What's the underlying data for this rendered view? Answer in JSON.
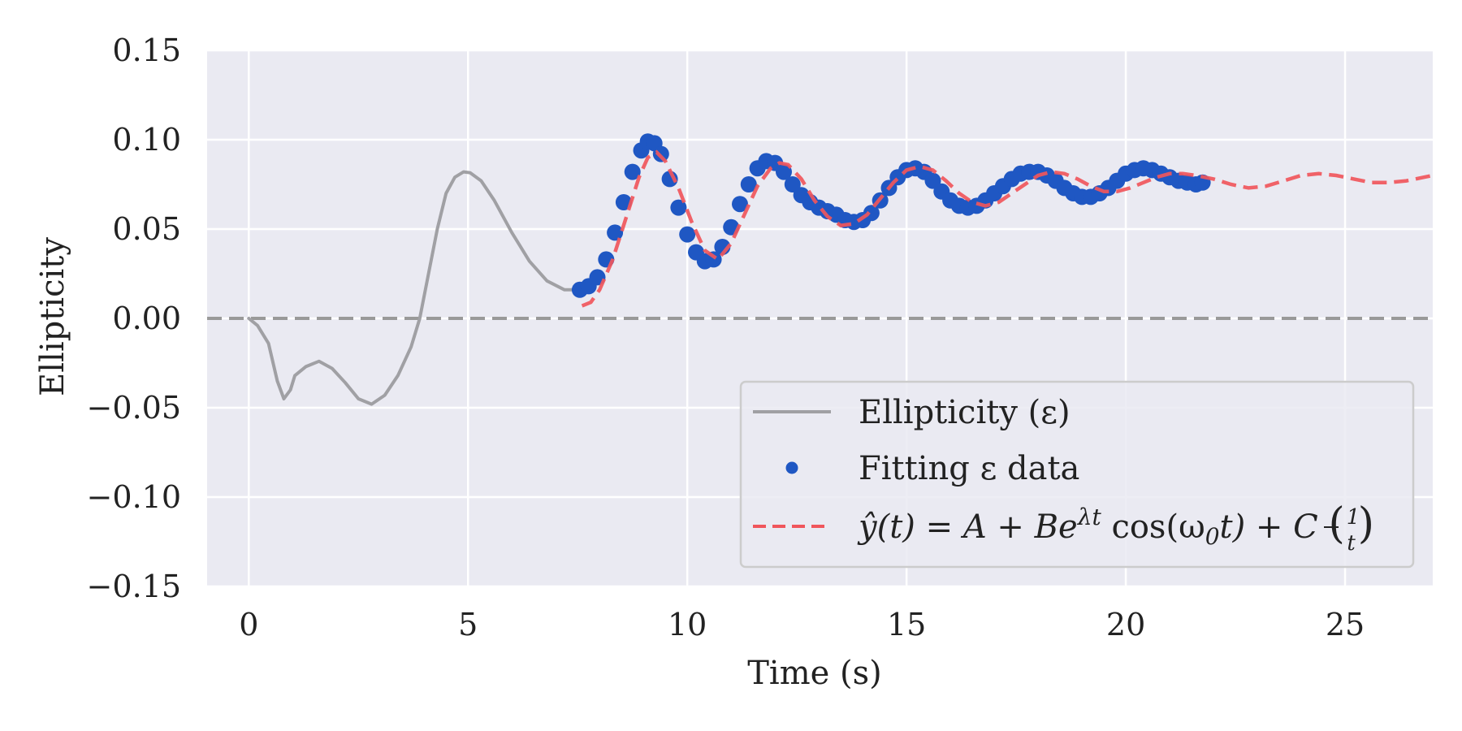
{
  "chart_data": {
    "type": "line",
    "title": "",
    "xlabel": "Time (s)",
    "ylabel": "Ellipticity",
    "xlim": [
      -0.95,
      27
    ],
    "ylim": [
      -0.15,
      0.15
    ],
    "xticks": [
      0,
      5,
      10,
      15,
      20,
      25
    ],
    "xtick_labels": [
      "0",
      "5",
      "10",
      "15",
      "20",
      "25"
    ],
    "yticks": [
      -0.15,
      -0.1,
      -0.05,
      0.0,
      0.05,
      0.1,
      0.15
    ],
    "ytick_labels": [
      "−0.15",
      "−0.10",
      "−0.05",
      "0.00",
      "0.05",
      "0.10",
      "0.15"
    ],
    "grid": true,
    "legend_position": "lower-right",
    "reference_line": {
      "y": 0.0,
      "color": "#999999",
      "style": "dashed"
    },
    "series": [
      {
        "name": "Ellipticity (ε)",
        "kind": "line",
        "color": "#a0a0a4",
        "x": [
          0,
          0.2,
          0.45,
          0.65,
          0.8,
          0.95,
          1.05,
          1.3,
          1.6,
          1.9,
          2.2,
          2.5,
          2.8,
          3.1,
          3.4,
          3.7,
          3.9,
          4.1,
          4.3,
          4.5,
          4.7,
          4.9,
          5.05,
          5.3,
          5.6,
          6.0,
          6.4,
          6.8,
          7.2,
          7.55
        ],
        "y": [
          0.0,
          -0.004,
          -0.014,
          -0.035,
          -0.045,
          -0.04,
          -0.032,
          -0.027,
          -0.024,
          -0.028,
          -0.036,
          -0.045,
          -0.048,
          -0.043,
          -0.032,
          -0.016,
          0.0,
          0.025,
          0.05,
          0.07,
          0.079,
          0.082,
          0.0815,
          0.077,
          0.066,
          0.048,
          0.032,
          0.021,
          0.016,
          0.016
        ]
      },
      {
        "name": "Fitting ε data",
        "kind": "scatter",
        "color": "#1f57c3",
        "x": [
          7.55,
          7.75,
          7.95,
          8.15,
          8.35,
          8.55,
          8.75,
          8.95,
          9.1,
          9.25,
          9.4,
          9.6,
          9.8,
          10.0,
          10.2,
          10.4,
          10.6,
          10.8,
          11.0,
          11.2,
          11.4,
          11.6,
          11.8,
          12.0,
          12.2,
          12.4,
          12.6,
          12.8,
          13.0,
          13.2,
          13.4,
          13.6,
          13.8,
          14.0,
          14.2,
          14.4,
          14.6,
          14.8,
          15.0,
          15.2,
          15.4,
          15.6,
          15.8,
          16.0,
          16.2,
          16.4,
          16.6,
          16.8,
          17.0,
          17.2,
          17.4,
          17.6,
          17.8,
          18.0,
          18.2,
          18.4,
          18.6,
          18.8,
          19.0,
          19.2,
          19.4,
          19.6,
          19.8,
          20.0,
          20.2,
          20.4,
          20.6,
          20.8,
          21.0,
          21.2,
          21.4,
          21.6,
          21.75
        ],
        "y": [
          0.016,
          0.018,
          0.023,
          0.033,
          0.048,
          0.065,
          0.082,
          0.094,
          0.099,
          0.098,
          0.092,
          0.078,
          0.062,
          0.047,
          0.037,
          0.032,
          0.033,
          0.04,
          0.051,
          0.064,
          0.075,
          0.084,
          0.088,
          0.087,
          0.082,
          0.075,
          0.069,
          0.065,
          0.062,
          0.06,
          0.058,
          0.055,
          0.054,
          0.055,
          0.059,
          0.066,
          0.073,
          0.079,
          0.083,
          0.084,
          0.082,
          0.077,
          0.071,
          0.066,
          0.063,
          0.062,
          0.063,
          0.066,
          0.07,
          0.074,
          0.078,
          0.081,
          0.082,
          0.082,
          0.08,
          0.077,
          0.073,
          0.07,
          0.068,
          0.068,
          0.07,
          0.073,
          0.077,
          0.081,
          0.083,
          0.084,
          0.083,
          0.081,
          0.079,
          0.077,
          0.076,
          0.075,
          0.076
        ]
      },
      {
        "name": "ŷ(t) = A + Be^{λt} cos(ω₀t) + C (1/t)",
        "kind": "line",
        "style": "dashed",
        "color": "#f0565c",
        "x": [
          7.6,
          7.8,
          8.0,
          8.3,
          8.6,
          8.9,
          9.1,
          9.3,
          9.5,
          9.8,
          10.1,
          10.4,
          10.7,
          11.0,
          11.3,
          11.6,
          11.9,
          12.1,
          12.3,
          12.6,
          12.9,
          13.2,
          13.5,
          13.8,
          14.1,
          14.4,
          14.7,
          15.0,
          15.3,
          15.6,
          15.9,
          16.2,
          16.5,
          16.8,
          17.1,
          17.4,
          17.7,
          18.0,
          18.3,
          18.6,
          18.9,
          19.2,
          19.5,
          19.8,
          20.1,
          20.4,
          20.7,
          21.0,
          21.3,
          21.6,
          22.0,
          22.4,
          22.8,
          23.2,
          23.6,
          24.0,
          24.4,
          24.8,
          25.2,
          25.6,
          26.0,
          26.4,
          26.8,
          27.0
        ],
        "y": [
          0.007,
          0.009,
          0.016,
          0.033,
          0.056,
          0.079,
          0.09,
          0.093,
          0.088,
          0.073,
          0.054,
          0.038,
          0.033,
          0.042,
          0.058,
          0.074,
          0.084,
          0.087,
          0.086,
          0.078,
          0.066,
          0.057,
          0.052,
          0.053,
          0.058,
          0.067,
          0.076,
          0.083,
          0.085,
          0.083,
          0.077,
          0.07,
          0.065,
          0.063,
          0.065,
          0.07,
          0.075,
          0.08,
          0.082,
          0.081,
          0.078,
          0.074,
          0.071,
          0.071,
          0.073,
          0.076,
          0.079,
          0.081,
          0.081,
          0.08,
          0.078,
          0.075,
          0.073,
          0.074,
          0.077,
          0.08,
          0.081,
          0.08,
          0.078,
          0.076,
          0.076,
          0.077,
          0.079,
          0.08
        ]
      }
    ]
  },
  "legend": {
    "entry1_text": "Ellipticity (ε)",
    "entry2_text": "Fitting ε data",
    "entry3_text": "ŷ(t) = A + Be^{λt} cos(ω₀t) + C (1/t)",
    "entry3_parts": {
      "lhs": "ŷ(t) = A + Be",
      "sup": "λt",
      "mid": " cos(ω",
      "sub": "0",
      "tail": "t) + C ",
      "frac_num": "1",
      "frac_den": "t"
    }
  }
}
